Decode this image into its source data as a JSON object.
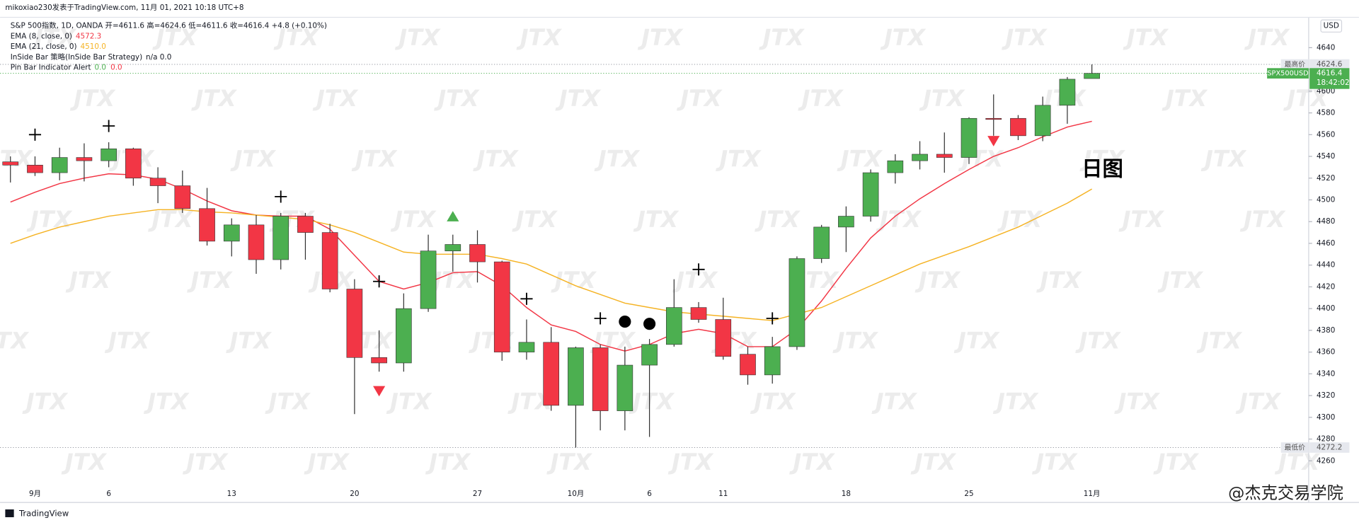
{
  "chart_data": {
    "type": "candlestick",
    "author_line": "mikoxiao230发表于TradingView.com, 11月 01, 2021 10:18 UTC+8",
    "symbol_line": "S&P 500指数, 1D, OANDA  开=4611.6 高=4624.6 低=4611.6 收=4616.4 +4.8 (+0.10%)",
    "indicator_lines": [
      {
        "name": "InSide Bar 策略(InSide Bar Strategy)",
        "value": "n/a  0.0"
      },
      {
        "name": "Pin Bar Indicator Alert",
        "value": "0.0",
        "value2": "0.0"
      }
    ],
    "annotation": "日图",
    "watermark": "JTX",
    "footer_brand": "TradingView",
    "footer_credit": "@杰克交易学院",
    "currency": "USD",
    "up_color": "#4caf50",
    "down_color": "#f23645",
    "wick_color": "#333333",
    "categories": [
      null,
      "9月",
      null,
      null,
      "6",
      null,
      null,
      null,
      null,
      "13",
      null,
      null,
      null,
      null,
      "20",
      null,
      null,
      null,
      null,
      "27",
      null,
      null,
      null,
      "10月",
      null,
      null,
      "6",
      null,
      null,
      "11",
      null,
      null,
      null,
      null,
      "18",
      null,
      null,
      null,
      null,
      "25",
      null,
      null,
      null,
      null,
      "11月"
    ],
    "open": [
      4535,
      4532,
      4525,
      4539,
      4536,
      4547,
      4520,
      4513,
      4492,
      4462,
      4477,
      4445,
      4485,
      4470,
      4418,
      4355,
      4350,
      4400,
      4453,
      4459,
      4443,
      4360,
      4369,
      4311,
      4364,
      4306,
      4348,
      4367,
      4401,
      4390,
      4358,
      4339,
      4365,
      4446,
      4475,
      4485,
      4525,
      4536,
      4542,
      4539,
      4575,
      4575,
      4559,
      4587,
      4611.6
    ],
    "high": [
      4540,
      4540,
      4548,
      4552,
      4553,
      4548,
      4530,
      4527,
      4511,
      4483,
      4486,
      4488,
      4488,
      4478,
      4427,
      4380,
      4414,
      4468,
      4468,
      4472,
      4444,
      4390,
      4383,
      4365,
      4367,
      4365,
      4372,
      4427,
      4406,
      4410,
      4365,
      4374,
      4448,
      4477,
      4494,
      4528,
      4542,
      4554,
      4562,
      4576,
      4597,
      4578,
      4595,
      4613,
      4624.6
    ],
    "low": [
      4516,
      4522,
      4518,
      4517,
      4530,
      4513,
      4497,
      4488,
      4458,
      4448,
      4432,
      4436,
      4445,
      4415,
      4303,
      4342,
      4342,
      4397,
      4434,
      4424,
      4352,
      4353,
      4306,
      4272.2,
      4288,
      4288,
      4282,
      4365,
      4387,
      4353,
      4330,
      4331,
      4362,
      4442,
      4452,
      4480,
      4515,
      4528,
      4525,
      4533,
      4559,
      4555,
      4554,
      4570,
      4611.6
    ],
    "close": [
      4532,
      4525,
      4539,
      4536,
      4547,
      4520,
      4513,
      4492,
      4462,
      4477,
      4445,
      4485,
      4470,
      4418,
      4355,
      4350,
      4400,
      4453,
      4459,
      4443,
      4360,
      4369,
      4311,
      4364,
      4306,
      4348,
      4367,
      4401,
      4390,
      4356,
      4339,
      4365,
      4446,
      4475,
      4485,
      4525,
      4536,
      4542,
      4539,
      4575,
      4574,
      4559,
      4587,
      4611,
      4616.4
    ],
    "series": [
      {
        "name": "EMA (8, close, 0)",
        "value_label": "4572.3",
        "color": "#f23645",
        "values": [
          4498,
          4507,
          4515,
          4520,
          4524,
          4523,
          4519,
          4510,
          4499,
          4490,
          4486,
          4485,
          4485,
          4473,
          4449,
          4425,
          4418,
          4424,
          4433,
          4434,
          4421,
          4401,
          4385,
          4379,
          4367,
          4361,
          4367,
          4377,
          4381,
          4377,
          4365,
          4365,
          4381,
          4407,
          4437,
          4465,
          4485,
          4501,
          4515,
          4528,
          4540,
          4548,
          4558,
          4567,
          4572.3
        ]
      },
      {
        "name": "EMA (21, close, 0)",
        "value_label": "4510.0",
        "color": "#f5b324",
        "values": [
          4460,
          4468,
          4475,
          4480,
          4485,
          4488,
          4491,
          4491,
          4489,
          4488,
          4486,
          4484,
          4482,
          4477,
          4470,
          4461,
          4452,
          4450,
          4450,
          4450,
          4446,
          4441,
          4431,
          4421,
          4413,
          4405,
          4401,
          4397,
          4395,
          4393,
          4391,
          4389,
          4395,
          4401,
          4411,
          4421,
          4431,
          4441,
          4449,
          4457,
          4466,
          4475,
          4486,
          4497,
          4510
        ]
      }
    ],
    "markers": [
      {
        "shape": "plus",
        "index": 1,
        "value": 4560
      },
      {
        "shape": "plus",
        "index": 4,
        "value": 4568
      },
      {
        "shape": "plus",
        "index": 11,
        "value": 4503
      },
      {
        "shape": "plus",
        "index": 15,
        "value": 4425
      },
      {
        "shape": "plus",
        "index": 21,
        "value": 4409
      },
      {
        "shape": "plus",
        "index": 24,
        "value": 4391
      },
      {
        "shape": "plus",
        "index": 28,
        "value": 4436
      },
      {
        "shape": "plus",
        "index": 31,
        "value": 4391
      },
      {
        "shape": "dot",
        "index": 25,
        "value": 4388
      },
      {
        "shape": "dot",
        "index": 26,
        "value": 4386
      },
      {
        "shape": "down",
        "index": 15,
        "value": 4324
      },
      {
        "shape": "down",
        "index": 40,
        "value": 4554
      },
      {
        "shape": "up",
        "index": 18,
        "value": 4485
      }
    ],
    "high_label": {
      "label": "最高价",
      "value": 4624.6
    },
    "low_label": {
      "label": "最低价",
      "value": 4272.2
    },
    "last_price": {
      "symbol": "SPX500USD",
      "value": 4616.4,
      "countdown": "18:42:02"
    },
    "ylim": [
      4240,
      4666
    ],
    "yticks": [
      4260,
      4280,
      4300,
      4320,
      4340,
      4360,
      4380,
      4400,
      4420,
      4440,
      4460,
      4480,
      4500,
      4520,
      4540,
      4560,
      4580,
      4600,
      4620,
      4640
    ]
  }
}
